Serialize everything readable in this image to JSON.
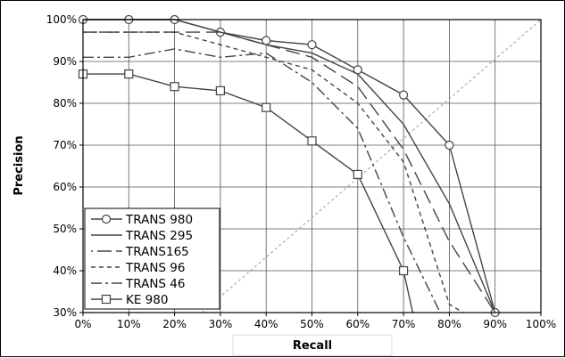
{
  "chart_data": {
    "type": "line",
    "title": "",
    "xlabel": "Recall",
    "ylabel": "Precision",
    "xlim": [
      0,
      100
    ],
    "ylim": [
      30,
      100
    ],
    "x_ticks": [
      "0%",
      "10%",
      "20%",
      "30%",
      "40%",
      "50%",
      "60%",
      "70%",
      "80%",
      "90%",
      "100%"
    ],
    "y_ticks": [
      "30%",
      "40%",
      "50%",
      "60%",
      "70%",
      "80%",
      "90%",
      "100%"
    ],
    "grid": true,
    "legend_position": "bottom-left",
    "diagonal_reference": {
      "from": [
        26,
        30
      ],
      "to": [
        100,
        100
      ],
      "style": "dotted",
      "color": "#aaaaaa"
    },
    "series": [
      {
        "name": "TRANS 980",
        "style": "solid",
        "marker": "circle",
        "x": [
          0,
          10,
          20,
          30,
          40,
          50,
          60,
          70,
          80,
          90
        ],
        "y": [
          100,
          100,
          100,
          97,
          95,
          94,
          88,
          82,
          70,
          30
        ]
      },
      {
        "name": "TRANS 295",
        "style": "solid",
        "marker": "none",
        "x": [
          0,
          10,
          20,
          30,
          40,
          50,
          60,
          70,
          80,
          90
        ],
        "y": [
          100,
          100,
          100,
          97,
          94,
          92,
          87,
          75,
          56,
          30
        ]
      },
      {
        "name": "TRANS165",
        "style": "longdash",
        "marker": "none",
        "x": [
          0,
          10,
          20,
          30,
          40,
          50,
          60,
          70,
          80,
          90
        ],
        "y": [
          97,
          97,
          97,
          97,
          94,
          91,
          84,
          69,
          47,
          30
        ]
      },
      {
        "name": "TRANS 96",
        "style": "dashed",
        "marker": "none",
        "x": [
          0,
          10,
          20,
          30,
          40,
          50,
          60,
          70,
          80,
          83
        ],
        "y": [
          97,
          97,
          97,
          94,
          91,
          88,
          80,
          66,
          32,
          30
        ]
      },
      {
        "name": "TRANS 46",
        "style": "dashdot",
        "marker": "none",
        "x": [
          0,
          10,
          20,
          30,
          40,
          50,
          60,
          70,
          78
        ],
        "y": [
          91,
          91,
          93,
          91,
          92,
          85,
          74,
          48,
          30
        ]
      },
      {
        "name": "KE 980",
        "style": "solid",
        "marker": "square",
        "x": [
          0,
          10,
          20,
          30,
          40,
          50,
          60,
          70,
          72
        ],
        "y": [
          87,
          87,
          84,
          83,
          79,
          71,
          63,
          40,
          30
        ]
      }
    ]
  }
}
